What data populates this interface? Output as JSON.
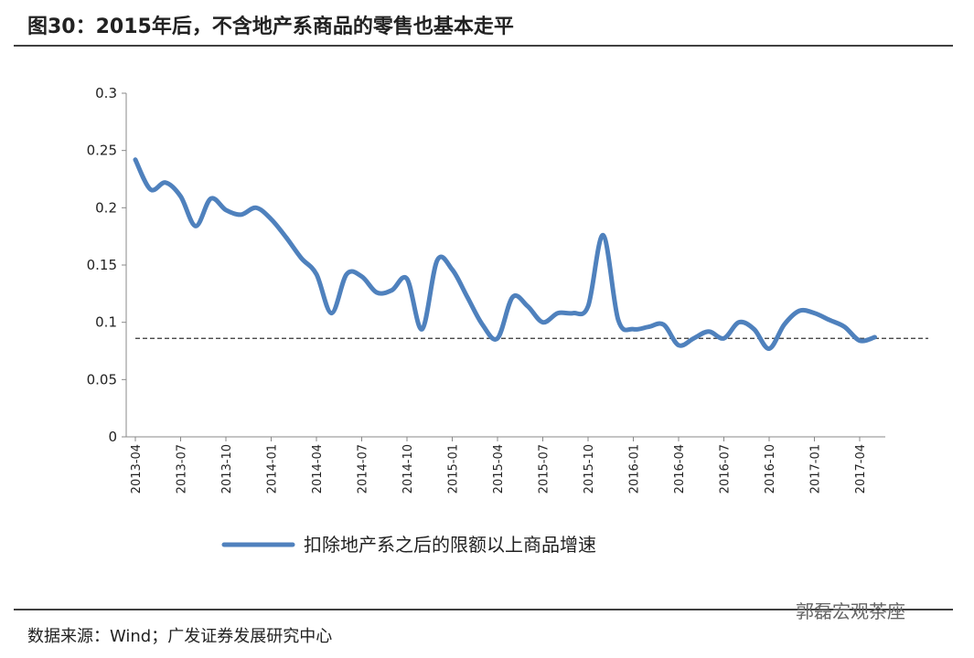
{
  "chart_data": {
    "type": "line",
    "title": "图30：2015年后，不含地产系商品的零售也基本走平",
    "source": "数据来源：Wind；广发证券发展研究中心",
    "watermark": "郭磊宏观茶座",
    "categories": [
      "2013-04",
      null,
      null,
      "2013-07",
      null,
      null,
      "2013-10",
      null,
      null,
      "2014-01",
      null,
      null,
      "2014-04",
      null,
      null,
      "2014-07",
      null,
      null,
      "2014-10",
      null,
      null,
      "2015-01",
      null,
      null,
      "2015-04",
      null,
      null,
      "2015-07",
      null,
      null,
      "2015-10",
      null,
      null,
      "2016-01",
      null,
      null,
      "2016-04",
      null,
      null,
      "2016-07",
      null,
      null,
      "2016-10",
      null,
      null,
      "2017-01",
      null,
      null,
      "2017-04",
      null
    ],
    "series": [
      {
        "name": "扣除地产系之后的限额以上商品增速",
        "color": "#4f81bd",
        "values": [
          0.242,
          0.216,
          0.222,
          0.21,
          0.184,
          0.208,
          0.198,
          0.194,
          0.2,
          0.19,
          0.174,
          0.156,
          0.142,
          0.108,
          0.142,
          0.14,
          0.126,
          0.128,
          0.138,
          0.094,
          0.154,
          0.146,
          0.122,
          0.098,
          0.086,
          0.122,
          0.114,
          0.1,
          0.108,
          0.108,
          0.114,
          0.176,
          0.102,
          0.094,
          0.096,
          0.098,
          0.08,
          0.086,
          0.092,
          0.086,
          0.1,
          0.094,
          0.077,
          0.098,
          0.11,
          0.108,
          0.102,
          0.096,
          0.084,
          0.087
        ]
      }
    ],
    "reference_line": 0.086,
    "ylim": [
      0,
      0.3
    ],
    "yticks": [
      0,
      0.05,
      0.1,
      0.15,
      0.2,
      0.25,
      0.3
    ],
    "legend": "bottom"
  }
}
